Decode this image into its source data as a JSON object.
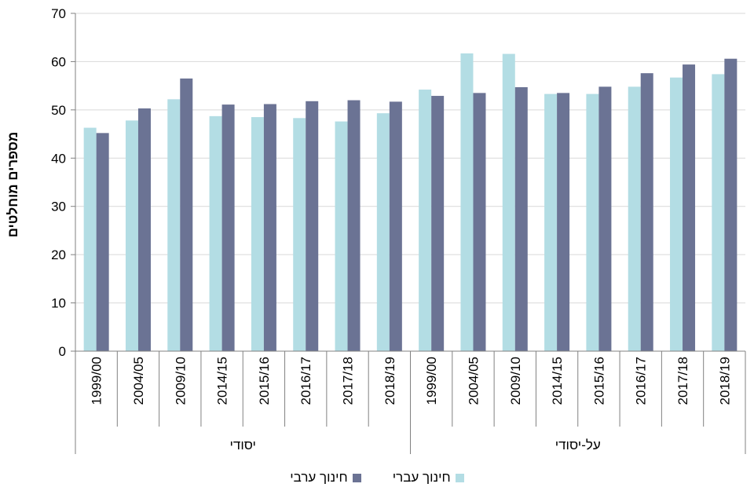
{
  "chart_data": {
    "type": "bar",
    "ylabel": "מספרים מוחלטים",
    "ylim": [
      0,
      70
    ],
    "yticks": [
      0,
      10,
      20,
      30,
      40,
      50,
      60,
      70
    ],
    "grid": true,
    "legend_position": "bottom",
    "groups": [
      {
        "label": "יסודי",
        "categories": [
          "1999/00",
          "2004/05",
          "2009/10",
          "2014/15",
          "2015/16",
          "2016/17",
          "2017/18",
          "2018/19"
        ]
      },
      {
        "label": "על-יסודי",
        "categories": [
          "1999/00",
          "2004/05",
          "2009/10",
          "2014/15",
          "2015/16",
          "2016/17",
          "2017/18",
          "2018/19"
        ]
      }
    ],
    "series": [
      {
        "name": "חינוך עברי",
        "color": "#b3dde4",
        "values": [
          46.3,
          47.8,
          52.2,
          48.7,
          48.5,
          48.3,
          47.6,
          49.3,
          54.2,
          61.7,
          61.6,
          53.3,
          53.3,
          54.8,
          56.7,
          57.4
        ]
      },
      {
        "name": "חינוך ערבי",
        "color": "#6b7394",
        "values": [
          45.2,
          50.3,
          56.5,
          51.1,
          51.2,
          51.8,
          52.0,
          51.7,
          52.9,
          53.5,
          54.7,
          53.5,
          54.8,
          57.6,
          59.4,
          60.6
        ]
      }
    ]
  }
}
